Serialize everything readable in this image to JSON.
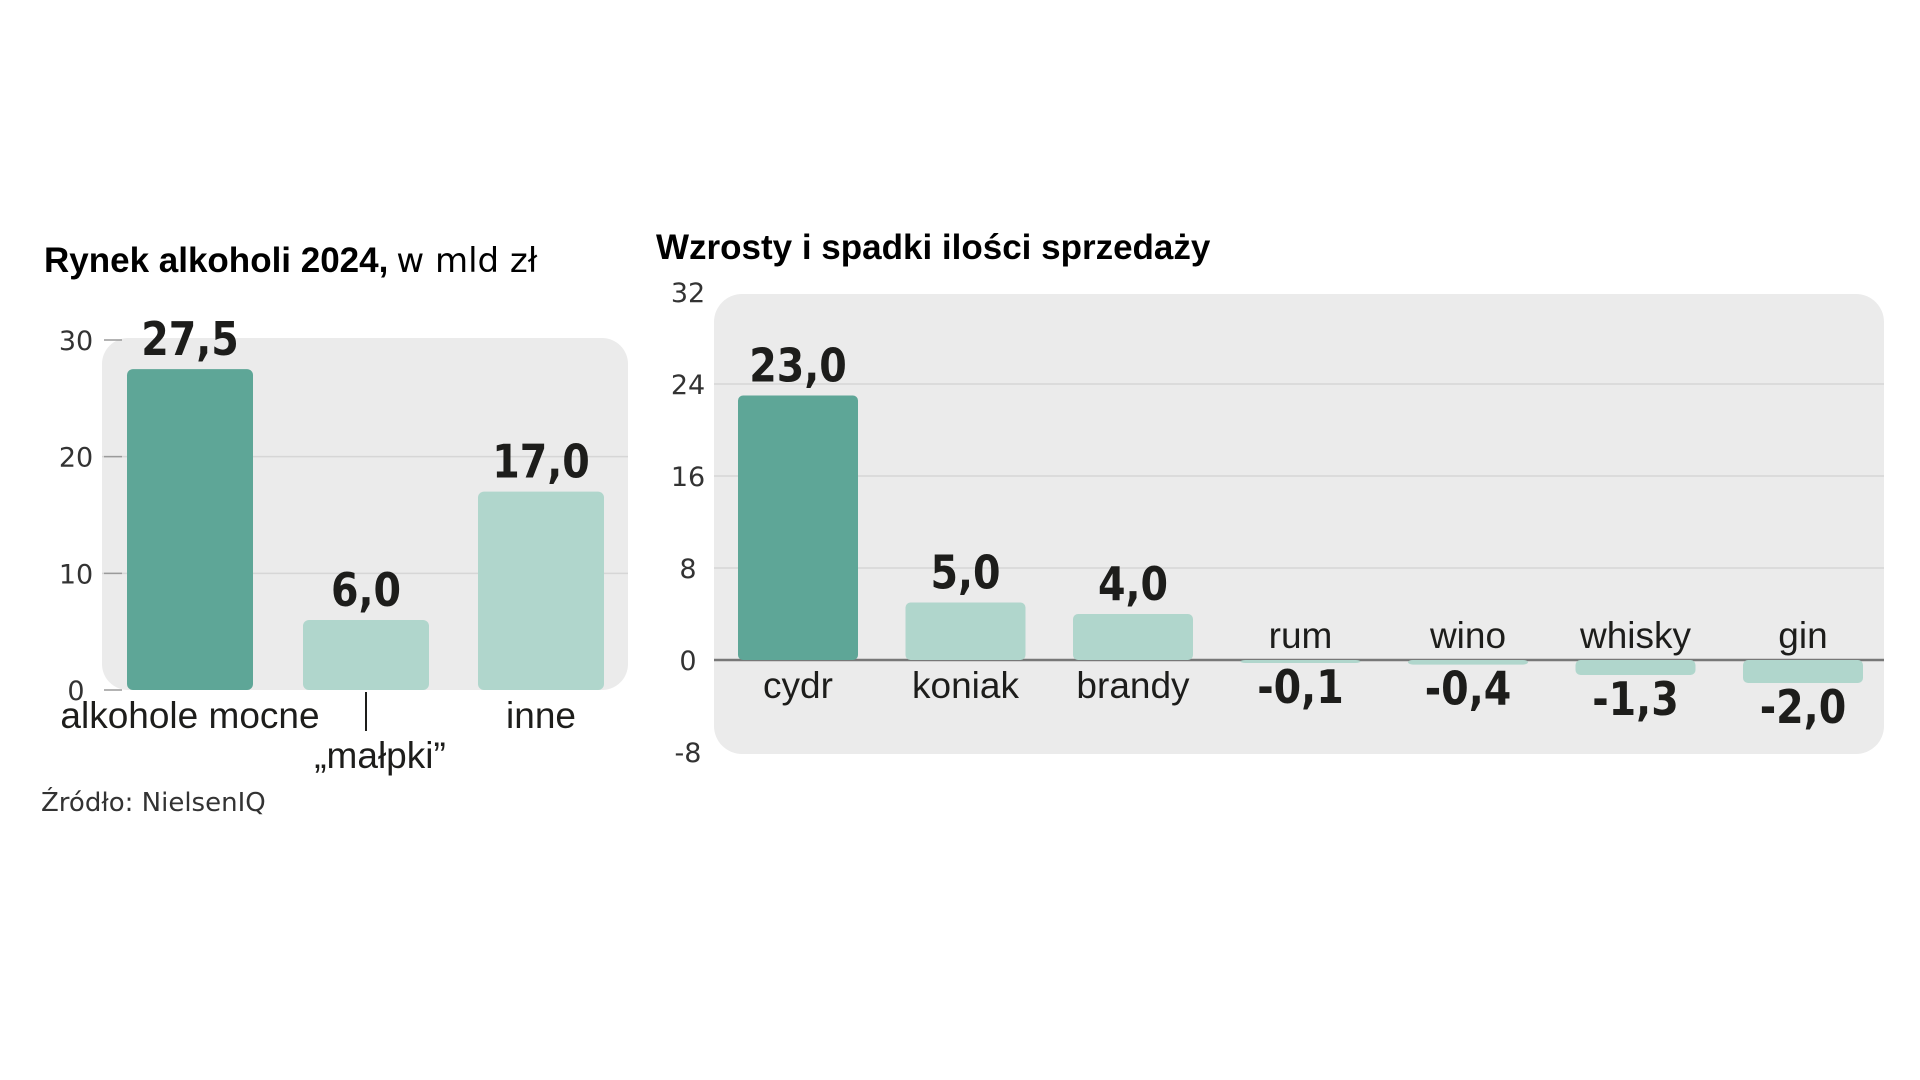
{
  "colors": {
    "primary_bar": "#5ea697",
    "secondary_bar": "#b0d6cc",
    "panel_bg": "#ebebeb",
    "grid": "#d6d6d6",
    "zero_line": "#777777",
    "text": "#1d1d1b"
  },
  "source": "Źródło: NielsenIQ",
  "chart_data": [
    {
      "type": "bar",
      "title": "Rynek alkoholi 2024,",
      "subtitle": "w mld zł",
      "categories": [
        "alkohole mocne",
        "„małpki”",
        "inne"
      ],
      "values": [
        27.5,
        6.0,
        17.0
      ],
      "value_labels": [
        "27,5",
        "6,0",
        "17,0"
      ],
      "y_ticks": [
        "30",
        "20",
        "10",
        "0"
      ],
      "ylim": [
        0,
        30
      ],
      "grid": true,
      "highlight_index": 0
    },
    {
      "type": "bar",
      "title": "Wzrosty i spadki ilości sprzedaży",
      "categories": [
        "cydr",
        "koniak",
        "brandy",
        "rum",
        "wino",
        "whisky",
        "gin"
      ],
      "values": [
        23.0,
        5.0,
        4.0,
        -0.1,
        -0.4,
        -1.3,
        -2.0
      ],
      "value_labels": [
        "23,0",
        "5,0",
        "4,0",
        "-0,1",
        "-0,4",
        "-1,3",
        "-2,0"
      ],
      "y_ticks": [
        "32",
        "24",
        "16",
        "8",
        "0",
        "-8"
      ],
      "ylim": [
        -8,
        32
      ],
      "grid": true,
      "highlight_index": 0
    }
  ]
}
